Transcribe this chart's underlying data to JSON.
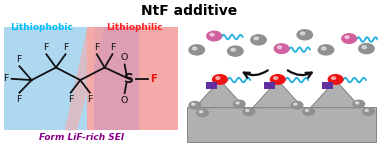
{
  "title": "NtF additive",
  "title_fontsize": 10,
  "title_fontweight": "bold",
  "bg_color": "#ffffff",
  "left_label": "Lithiophobic",
  "left_label_color": "#00BFFF",
  "right_label": "Lithiophilic",
  "right_label_color": "#FF2020",
  "bottom_label": "Form LiF-rich SEI",
  "bottom_label_color": "#8B008B",
  "chem_bg_blue": "#ADD8F0",
  "chem_bg_pink": "#F5AAAA",
  "chem_bg_purple": "#C090C0",
  "gray_metal": "#B0B0B0",
  "dark_gray": "#777777",
  "sphere_gray": "#909090",
  "sphere_red": "#EE1111",
  "sphere_pink": "#D060A0",
  "sphere_purple": "#6030A0",
  "cyan_color": "#20B0E0",
  "arrow_color": "#111111",
  "bond_color": "#111111",
  "F_color": "#111111",
  "S_color": "#111111",
  "O_color": "#111111",
  "F_red_color": "#EE1111"
}
